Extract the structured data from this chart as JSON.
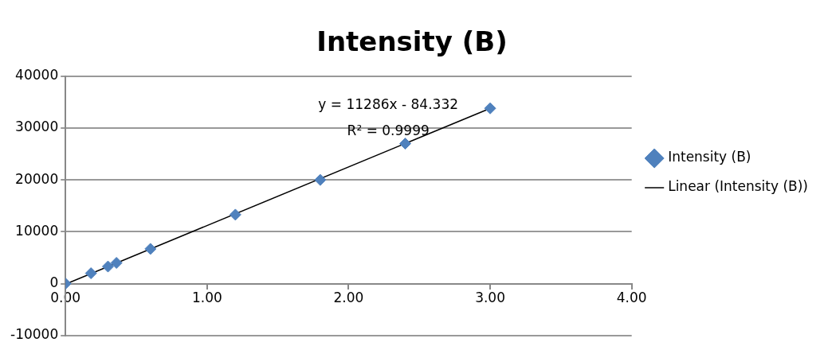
{
  "chart_data": {
    "type": "scatter",
    "title": "Intensity (B)",
    "x": [
      0,
      0.18,
      0.3,
      0.36,
      0.6,
      1.2,
      1.8,
      2.4,
      3.0
    ],
    "series": [
      {
        "name": "Intensity (B)",
        "color": "#4f81bd",
        "marker": "diamond",
        "values": [
          0,
          2000,
          3300,
          4000,
          6700,
          13300,
          20000,
          27000,
          33800
        ]
      },
      {
        "name": "Linear (Intensity (B))",
        "type": "line",
        "color": "#000000",
        "marker": "none",
        "line_style": "solid",
        "x": [
          0,
          3.0
        ],
        "values": [
          -100,
          33800
        ]
      }
    ],
    "xlim": [
      0,
      4
    ],
    "xticks": [
      {
        "value": 0,
        "label": "0.00"
      },
      {
        "value": 1,
        "label": "1.00"
      },
      {
        "value": 2,
        "label": "2.00"
      },
      {
        "value": 3,
        "label": "3.00"
      },
      {
        "value": 4,
        "label": "4.00"
      }
    ],
    "ylim": [
      -10000,
      40000
    ],
    "yticks": [
      -10000,
      0,
      10000,
      20000,
      30000,
      40000
    ],
    "grid": "y",
    "legend": "right",
    "annotations": [
      "y = 11286x - 84.332",
      "R² = 0.9999"
    ]
  }
}
